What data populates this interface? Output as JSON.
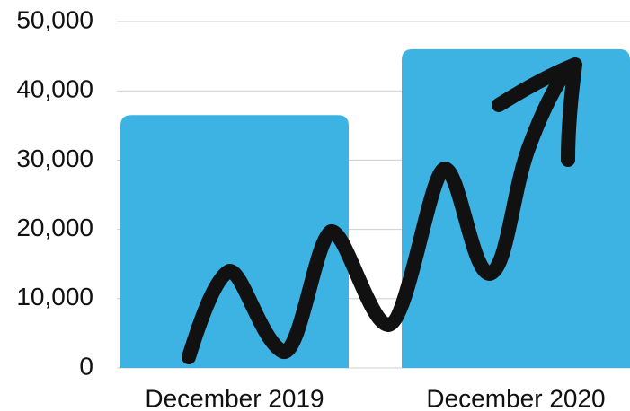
{
  "chart_data": {
    "type": "bar",
    "categories": [
      "December 2019",
      "December 2020"
    ],
    "values": [
      36500,
      46000
    ],
    "color": "#3db3e4",
    "ylim": [
      0,
      50000
    ],
    "yticks": [
      0,
      {
        "value": 10000,
        "label": "10,000"
      },
      {
        "value": 20000,
        "label": "20,000"
      },
      {
        "value": 30000,
        "label": "30,000"
      },
      {
        "value": 40000,
        "label": "40,000"
      },
      {
        "value": 50000,
        "label": "50,000"
      }
    ],
    "grid": true
  }
}
